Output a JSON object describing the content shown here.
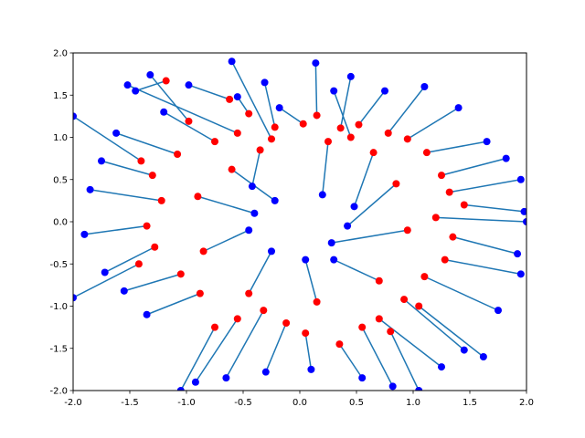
{
  "chart_data": {
    "type": "scatter",
    "title": "",
    "xlabel": "",
    "ylabel": "",
    "xlim": [
      -2.0,
      2.0
    ],
    "ylim": [
      -2.0,
      2.0
    ],
    "grid": false,
    "x_ticks": [
      "-2.0",
      "-1.5",
      "-1.0",
      "-0.5",
      "0.0",
      "0.5",
      "1.0",
      "1.5",
      "2.0"
    ],
    "y_ticks": [
      "-2.0",
      "-1.5",
      "-1.0",
      "-0.5",
      "0.0",
      "0.5",
      "1.0",
      "1.5",
      "2.0"
    ],
    "x_tick_values": [
      -2.0,
      -1.5,
      -1.0,
      -0.5,
      0.0,
      0.5,
      1.0,
      1.5,
      2.0
    ],
    "y_tick_values": [
      -2.0,
      -1.5,
      -1.0,
      -0.5,
      0.0,
      0.5,
      1.0,
      1.5,
      2.0
    ],
    "colors": {
      "target": "#ff0000",
      "prediction": "#0000ff",
      "link": "#1f77b4"
    },
    "segments": [
      {
        "red": [
          -1.18,
          1.67
        ],
        "blue": [
          -1.45,
          1.55
        ]
      },
      {
        "red": [
          -0.98,
          1.19
        ],
        "blue": [
          -1.32,
          1.74
        ]
      },
      {
        "red": [
          -0.55,
          1.05
        ],
        "blue": [
          -1.52,
          1.62
        ]
      },
      {
        "red": [
          -0.62,
          1.45
        ],
        "blue": [
          -0.98,
          1.62
        ]
      },
      {
        "red": [
          -0.45,
          1.28
        ],
        "blue": [
          -0.55,
          1.48
        ]
      },
      {
        "red": [
          -0.22,
          1.12
        ],
        "blue": [
          -0.31,
          1.65
        ]
      },
      {
        "red": [
          0.03,
          1.16
        ],
        "blue": [
          -0.18,
          1.35
        ]
      },
      {
        "red": [
          0.15,
          1.26
        ],
        "blue": [
          0.14,
          1.88
        ]
      },
      {
        "red": [
          0.36,
          1.11
        ],
        "blue": [
          0.45,
          1.72
        ]
      },
      {
        "red": [
          0.52,
          1.15
        ],
        "blue": [
          0.75,
          1.55
        ]
      },
      {
        "red": [
          0.78,
          1.05
        ],
        "blue": [
          1.1,
          1.6
        ]
      },
      {
        "red": [
          0.95,
          0.98
        ],
        "blue": [
          1.4,
          1.35
        ]
      },
      {
        "red": [
          1.12,
          0.82
        ],
        "blue": [
          1.65,
          0.95
        ]
      },
      {
        "red": [
          1.25,
          0.55
        ],
        "blue": [
          1.82,
          0.75
        ]
      },
      {
        "red": [
          1.32,
          0.35
        ],
        "blue": [
          1.95,
          0.5
        ]
      },
      {
        "red": [
          1.2,
          0.05
        ],
        "blue": [
          2.0,
          0.0
        ]
      },
      {
        "red": [
          1.35,
          -0.18
        ],
        "blue": [
          1.92,
          -0.38
        ]
      },
      {
        "red": [
          1.28,
          -0.45
        ],
        "blue": [
          1.95,
          -0.62
        ]
      },
      {
        "red": [
          1.1,
          -0.65
        ],
        "blue": [
          1.75,
          -1.05
        ]
      },
      {
        "red": [
          0.92,
          -0.92
        ],
        "blue": [
          1.45,
          -1.52
        ]
      },
      {
        "red": [
          0.7,
          -1.15
        ],
        "blue": [
          1.25,
          -1.72
        ]
      },
      {
        "red": [
          0.55,
          -1.25
        ],
        "blue": [
          0.82,
          -1.95
        ]
      },
      {
        "red": [
          0.35,
          -1.45
        ],
        "blue": [
          0.55,
          -1.85
        ]
      },
      {
        "red": [
          0.05,
          -1.32
        ],
        "blue": [
          0.1,
          -1.75
        ]
      },
      {
        "red": [
          -0.12,
          -1.2
        ],
        "blue": [
          -0.3,
          -1.78
        ]
      },
      {
        "red": [
          -0.32,
          -1.05
        ],
        "blue": [
          -0.65,
          -1.85
        ]
      },
      {
        "red": [
          -0.55,
          -1.15
        ],
        "blue": [
          -0.92,
          -1.9
        ]
      },
      {
        "red": [
          -0.88,
          -0.85
        ],
        "blue": [
          -1.35,
          -1.1
        ]
      },
      {
        "red": [
          -1.05,
          -0.62
        ],
        "blue": [
          -1.55,
          -0.82
        ]
      },
      {
        "red": [
          -1.28,
          -0.3
        ],
        "blue": [
          -1.72,
          -0.6
        ]
      },
      {
        "red": [
          -1.35,
          -0.05
        ],
        "blue": [
          -1.9,
          -0.15
        ]
      },
      {
        "red": [
          -1.22,
          0.25
        ],
        "blue": [
          -1.85,
          0.38
        ]
      },
      {
        "red": [
          -1.3,
          0.55
        ],
        "blue": [
          -1.75,
          0.72
        ]
      },
      {
        "red": [
          -1.08,
          0.8
        ],
        "blue": [
          -1.62,
          1.05
        ]
      },
      {
        "red": [
          -0.75,
          0.95
        ],
        "blue": [
          -1.2,
          1.3
        ]
      },
      {
        "red": [
          -0.35,
          0.85
        ],
        "blue": [
          -0.42,
          0.42
        ]
      },
      {
        "red": [
          0.25,
          0.95
        ],
        "blue": [
          0.2,
          0.32
        ]
      },
      {
        "red": [
          0.65,
          0.82
        ],
        "blue": [
          0.48,
          0.18
        ]
      },
      {
        "red": [
          0.85,
          0.45
        ],
        "blue": [
          0.42,
          -0.05
        ]
      },
      {
        "red": [
          0.95,
          -0.1
        ],
        "blue": [
          0.28,
          -0.25
        ]
      },
      {
        "red": [
          0.7,
          -0.7
        ],
        "blue": [
          0.3,
          -0.45
        ]
      },
      {
        "red": [
          0.15,
          -0.95
        ],
        "blue": [
          0.05,
          -0.45
        ]
      },
      {
        "red": [
          -0.45,
          -0.85
        ],
        "blue": [
          -0.25,
          -0.35
        ]
      },
      {
        "red": [
          -0.85,
          -0.35
        ],
        "blue": [
          -0.45,
          -0.1
        ]
      },
      {
        "red": [
          -0.9,
          0.3
        ],
        "blue": [
          -0.4,
          0.1
        ]
      },
      {
        "red": [
          -0.6,
          0.62
        ],
        "blue": [
          -0.22,
          0.25
        ]
      },
      {
        "red": [
          0.45,
          1.0
        ],
        "blue": [
          0.3,
          1.55
        ]
      },
      {
        "red": [
          -1.4,
          0.72
        ],
        "blue": [
          -2.0,
          1.25
        ]
      },
      {
        "red": [
          -1.42,
          -0.5
        ],
        "blue": [
          -2.0,
          -0.9
        ]
      },
      {
        "red": [
          1.45,
          0.2
        ],
        "blue": [
          1.98,
          0.12
        ]
      },
      {
        "red": [
          1.05,
          -1.0
        ],
        "blue": [
          1.62,
          -1.6
        ]
      },
      {
        "red": [
          -0.75,
          -1.25
        ],
        "blue": [
          -1.05,
          -2.0
        ]
      },
      {
        "red": [
          0.8,
          -1.3
        ],
        "blue": [
          1.05,
          -2.0
        ]
      },
      {
        "red": [
          -0.25,
          0.98
        ],
        "blue": [
          -0.6,
          1.9
        ]
      }
    ]
  }
}
